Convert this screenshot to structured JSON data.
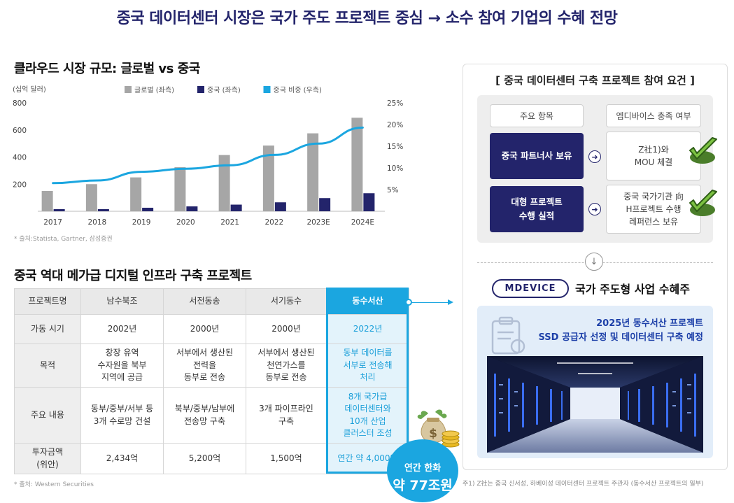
{
  "main_title": "중국 데이터센터 시장은 국가 주도 프로젝트 중심 → 소수 참여 기업의 수혜 전망",
  "cloud_section_title": "클라우드 시장 규모: 글로벌 vs 중국",
  "cloud_source": "* 출처:Statista, Gartner, 삼성증권",
  "colors": {
    "navy": "#23246b",
    "accent_blue": "#1ba6e0",
    "gray_bar": "#a6a6a6",
    "china_bar": "#23246b"
  },
  "chart_data": {
    "type": "bar",
    "unit_label": "(십억 달러)",
    "categories": [
      "2017",
      "2018",
      "2019",
      "2020",
      "2021",
      "2022",
      "2023E",
      "2024E"
    ],
    "y_ticks": [
      "200",
      "400",
      "600",
      "800"
    ],
    "y_right_ticks": [
      "5%",
      "10%",
      "15%",
      "20%",
      "25%"
    ],
    "ylim": [
      0,
      800
    ],
    "y_right_lim": [
      0,
      25
    ],
    "legend_position": "top",
    "series": [
      {
        "name": "글로벌 (좌측)",
        "kind": "bar",
        "axis": "left",
        "color": "#a6a6a6",
        "values": [
          150,
          200,
          250,
          325,
          415,
          485,
          575,
          690
        ]
      },
      {
        "name": "중국 (좌측)",
        "kind": "bar",
        "axis": "left",
        "color": "#23246b",
        "values": [
          16,
          16,
          26,
          36,
          49,
          66,
          97,
          133
        ]
      },
      {
        "name": "중국 비중 (우측)",
        "kind": "line",
        "axis": "right",
        "color": "#1ba6e0",
        "values": [
          6.5,
          7.1,
          9.1,
          9.8,
          10.6,
          13.0,
          15.6,
          19.3
        ]
      }
    ]
  },
  "infra_section_title": "중국 역대 메가급 디지털 인프라 구축 프로젝트",
  "infra_table": {
    "headers": [
      "프로젝트명",
      "남수북조",
      "서전동송",
      "서기동수",
      "동수서산"
    ],
    "rows": [
      {
        "label": "가동 시기",
        "cells": [
          "2002년",
          "2000년",
          "2000년",
          "2022년"
        ]
      },
      {
        "label": "목적",
        "cells": [
          "창장 유역\n수자원을 북부\n지역에 공급",
          "서부에서 생산된\n전력을\n동부로 전송",
          "서부에서 생산된\n천연가스를\n동부로 전송",
          "동부 데이터를\n서부로 전송해\n처리"
        ]
      },
      {
        "label": "주요 내용",
        "cells": [
          "동부/중부/서부 등\n3개 수로망 건설",
          "북부/중부/남부에\n전송망 구축",
          "3개 파이프라인\n구축",
          "8개 국가급\n데이터센터와\n10개 산업\n클러스터 조성"
        ]
      },
      {
        "label": "투자금액\n(위안)",
        "cells": [
          "2,434억",
          "5,200억",
          "1,500억",
          "연간 약 4,000억"
        ]
      }
    ]
  },
  "infra_source": "* 출처: Western Securities",
  "badge": {
    "line1": "연간 한화",
    "line2": "약 77조원"
  },
  "requirements": {
    "title": "[ 중국 데이터센터 구축 프로젝트 참여 요건 ]",
    "col_item": "주요 항목",
    "col_status": "엠디바이스 충족 여부",
    "rows": [
      {
        "item": "중국 파트너사 보유",
        "status": "Z社1)와\nMOU 체결"
      },
      {
        "item": "대형 프로젝트\n수행 실적",
        "status": "중국 국가기관 向\nH프로젝트 수행\n레퍼런스 보유"
      }
    ]
  },
  "logo_text": "MDEVICE",
  "beneficiary_title": "국가 주도형 사업 수혜주",
  "datacenter_text": "2025년 동수서산 프로젝트\nSSD 공급자 선정 및 데이터센터 구축 예정",
  "footnote": "주1) Z社는 중국 신서성, 하베이성 데이터센터 프로젝트 주관자 (동수서산 프로젝트의 일부)"
}
